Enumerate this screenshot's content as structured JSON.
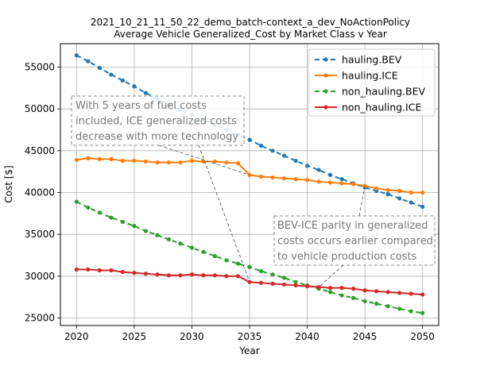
{
  "chart_data": {
    "type": "line",
    "title": "2021_10_21_11_50_22_demo_batch-context_a_dev_NoActionPolicy",
    "subtitle": "Average Vehicle Generalized_Cost  by Market Class v Year",
    "xlabel": "Year",
    "ylabel": "Cost [$]",
    "xlim": [
      2018.6,
      2051.4
    ],
    "ylim": [
      24100,
      57800
    ],
    "xticks": [
      2020,
      2025,
      2030,
      2035,
      2040,
      2045,
      2050
    ],
    "yticks": [
      25000,
      30000,
      35000,
      40000,
      45000,
      50000,
      55000
    ],
    "ytick_labels": [
      "25000",
      "30000",
      "35000",
      "40000",
      "45000",
      "50000",
      "55000"
    ],
    "grid": true,
    "legend_position": "top-right",
    "x": [
      2020,
      2021,
      2022,
      2023,
      2024,
      2025,
      2026,
      2027,
      2028,
      2029,
      2030,
      2031,
      2032,
      2033,
      2034,
      2035,
      2036,
      2037,
      2038,
      2039,
      2040,
      2041,
      2042,
      2043,
      2044,
      2045,
      2046,
      2047,
      2048,
      2049,
      2050
    ],
    "series": [
      {
        "name": "hauling.BEV",
        "color": "#1f77b4",
        "dashed": true,
        "values": [
          56400,
          55700,
          54900,
          54100,
          53400,
          52700,
          51900,
          51200,
          50500,
          49900,
          49300,
          48700,
          48100,
          47500,
          46900,
          46300,
          45600,
          45000,
          44400,
          43800,
          43200,
          42700,
          42100,
          41600,
          41100,
          40600,
          40200,
          39800,
          39300,
          38800,
          38300
        ]
      },
      {
        "name": "hauling.ICE",
        "color": "#ff7f0e",
        "dashed": false,
        "values": [
          43900,
          44100,
          44000,
          44000,
          43800,
          43800,
          43700,
          43600,
          43600,
          43600,
          43800,
          43700,
          43700,
          43600,
          43500,
          42100,
          41900,
          41800,
          41700,
          41600,
          41500,
          41300,
          41200,
          41100,
          41000,
          40800,
          40500,
          40300,
          40200,
          40000,
          40000
        ]
      },
      {
        "name": "non_hauling.BEV",
        "color": "#2ca02c",
        "dashed": true,
        "values": [
          38900,
          38200,
          37600,
          37000,
          36500,
          36000,
          35400,
          34900,
          34400,
          33900,
          33400,
          32900,
          32400,
          31900,
          31500,
          31100,
          30600,
          30200,
          29800,
          29300,
          28900,
          28500,
          28100,
          27700,
          27400,
          27000,
          26700,
          26400,
          26100,
          25800,
          25600
        ]
      },
      {
        "name": "non_hauling.ICE",
        "color": "#d62728",
        "dashed": false,
        "values": [
          30800,
          30800,
          30700,
          30700,
          30500,
          30400,
          30300,
          30200,
          30100,
          30100,
          30200,
          30100,
          30100,
          30000,
          30000,
          29300,
          29200,
          29100,
          29000,
          28900,
          28800,
          28700,
          28600,
          28600,
          28500,
          28300,
          28200,
          28100,
          28000,
          27900,
          27800
        ]
      }
    ],
    "annotations": [
      {
        "lines": [
          "With 5 years of fuel costs",
          "included, ICE generalized costs",
          "decrease with more technology"
        ],
        "arrows_to": [
          [
            2035,
            42100
          ],
          [
            2035,
            29300
          ]
        ]
      },
      {
        "lines": [
          "BEV-ICE parity in generalized",
          "costs occurs earlier compared",
          "to vehicle production  costs"
        ],
        "arrows_to": [
          [
            2045,
            40800
          ],
          [
            2041,
            28700
          ]
        ]
      }
    ]
  }
}
